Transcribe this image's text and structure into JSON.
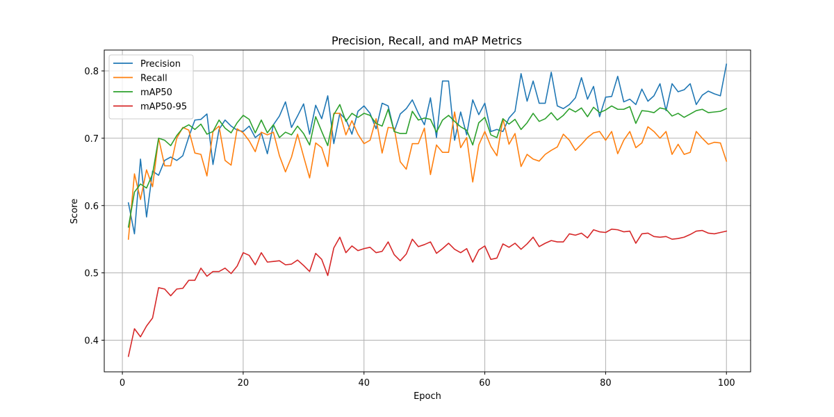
{
  "chart_data": {
    "type": "line",
    "title": "Precision, Recall, and mAP Metrics",
    "xlabel": "Epoch",
    "ylabel": "Score",
    "xlim": [
      -3,
      104
    ],
    "ylim": [
      0.353,
      0.831
    ],
    "xticks": [
      0,
      20,
      40,
      60,
      80,
      100
    ],
    "yticks": [
      0.4,
      0.5,
      0.6,
      0.7,
      0.8
    ],
    "ytick_labels": [
      "0.4",
      "0.5",
      "0.6",
      "0.7",
      "0.8"
    ],
    "grid": true,
    "legend_position": "upper left",
    "x": [
      1,
      2,
      3,
      4,
      5,
      6,
      7,
      8,
      9,
      10,
      11,
      12,
      13,
      14,
      15,
      16,
      17,
      18,
      19,
      20,
      21,
      22,
      23,
      24,
      25,
      26,
      27,
      28,
      29,
      30,
      31,
      32,
      33,
      34,
      35,
      36,
      37,
      38,
      39,
      40,
      41,
      42,
      43,
      44,
      45,
      46,
      47,
      48,
      49,
      50,
      51,
      52,
      53,
      54,
      55,
      56,
      57,
      58,
      59,
      60,
      61,
      62,
      63,
      64,
      65,
      66,
      67,
      68,
      69,
      70,
      71,
      72,
      73,
      74,
      75,
      76,
      77,
      78,
      79,
      80,
      81,
      82,
      83,
      84,
      85,
      86,
      87,
      88,
      89,
      90,
      91,
      92,
      93,
      94,
      95,
      96,
      97,
      98,
      99,
      100
    ],
    "series": [
      {
        "name": "Precision",
        "color": "#1f77b4",
        "values": [
          0.604,
          0.558,
          0.669,
          0.583,
          0.651,
          0.645,
          0.667,
          0.672,
          0.667,
          0.674,
          0.702,
          0.727,
          0.728,
          0.736,
          0.661,
          0.713,
          0.727,
          0.718,
          0.712,
          0.71,
          0.718,
          0.701,
          0.708,
          0.677,
          0.72,
          0.733,
          0.754,
          0.716,
          0.733,
          0.751,
          0.706,
          0.749,
          0.729,
          0.763,
          0.692,
          0.737,
          0.728,
          0.706,
          0.74,
          0.748,
          0.737,
          0.714,
          0.752,
          0.748,
          0.71,
          0.736,
          0.744,
          0.757,
          0.737,
          0.72,
          0.76,
          0.701,
          0.785,
          0.785,
          0.697,
          0.739,
          0.705,
          0.757,
          0.735,
          0.752,
          0.71,
          0.713,
          0.71,
          0.73,
          0.74,
          0.796,
          0.755,
          0.785,
          0.752,
          0.752,
          0.798,
          0.748,
          0.744,
          0.75,
          0.76,
          0.79,
          0.758,
          0.777,
          0.732,
          0.761,
          0.762,
          0.792,
          0.754,
          0.758,
          0.75,
          0.773,
          0.755,
          0.763,
          0.781,
          0.741,
          0.781,
          0.769,
          0.772,
          0.781,
          0.75,
          0.764,
          0.77,
          0.766,
          0.763,
          0.81
        ]
      },
      {
        "name": "Recall",
        "color": "#ff7f0e",
        "values": [
          0.55,
          0.647,
          0.609,
          0.653,
          0.628,
          0.7,
          0.659,
          0.659,
          0.7,
          0.716,
          0.712,
          0.678,
          0.676,
          0.644,
          0.71,
          0.718,
          0.667,
          0.66,
          0.714,
          0.708,
          0.696,
          0.68,
          0.709,
          0.705,
          0.709,
          0.674,
          0.65,
          0.672,
          0.706,
          0.673,
          0.641,
          0.693,
          0.686,
          0.658,
          0.737,
          0.737,
          0.705,
          0.726,
          0.706,
          0.692,
          0.697,
          0.729,
          0.678,
          0.716,
          0.715,
          0.665,
          0.654,
          0.692,
          0.692,
          0.715,
          0.646,
          0.69,
          0.679,
          0.679,
          0.739,
          0.686,
          0.701,
          0.635,
          0.69,
          0.71,
          0.688,
          0.674,
          0.729,
          0.691,
          0.707,
          0.658,
          0.676,
          0.669,
          0.666,
          0.676,
          0.682,
          0.687,
          0.706,
          0.697,
          0.682,
          0.691,
          0.701,
          0.708,
          0.71,
          0.697,
          0.71,
          0.677,
          0.697,
          0.71,
          0.686,
          0.693,
          0.717,
          0.71,
          0.7,
          0.71,
          0.676,
          0.691,
          0.676,
          0.679,
          0.71,
          0.7,
          0.691,
          0.694,
          0.693,
          0.666
        ]
      },
      {
        "name": "mAP50",
        "color": "#2ca02c",
        "values": [
          0.568,
          0.62,
          0.632,
          0.626,
          0.647,
          0.7,
          0.697,
          0.689,
          0.704,
          0.715,
          0.72,
          0.713,
          0.721,
          0.706,
          0.71,
          0.727,
          0.715,
          0.708,
          0.723,
          0.734,
          0.728,
          0.708,
          0.727,
          0.708,
          0.72,
          0.701,
          0.709,
          0.705,
          0.718,
          0.707,
          0.69,
          0.732,
          0.71,
          0.689,
          0.735,
          0.75,
          0.725,
          0.737,
          0.731,
          0.737,
          0.734,
          0.722,
          0.718,
          0.743,
          0.71,
          0.707,
          0.707,
          0.74,
          0.727,
          0.73,
          0.728,
          0.709,
          0.727,
          0.734,
          0.725,
          0.717,
          0.712,
          0.69,
          0.723,
          0.731,
          0.705,
          0.701,
          0.729,
          0.721,
          0.728,
          0.713,
          0.723,
          0.737,
          0.725,
          0.729,
          0.738,
          0.727,
          0.734,
          0.744,
          0.739,
          0.745,
          0.732,
          0.746,
          0.738,
          0.742,
          0.748,
          0.743,
          0.743,
          0.747,
          0.722,
          0.741,
          0.74,
          0.738,
          0.745,
          0.743,
          0.733,
          0.737,
          0.731,
          0.736,
          0.741,
          0.743,
          0.738,
          0.739,
          0.74,
          0.744
        ]
      },
      {
        "name": "mAP50-95",
        "color": "#d62728",
        "values": [
          0.376,
          0.417,
          0.405,
          0.421,
          0.433,
          0.478,
          0.476,
          0.466,
          0.476,
          0.477,
          0.489,
          0.489,
          0.507,
          0.495,
          0.502,
          0.502,
          0.507,
          0.499,
          0.51,
          0.53,
          0.526,
          0.512,
          0.53,
          0.516,
          0.517,
          0.518,
          0.512,
          0.513,
          0.519,
          0.511,
          0.502,
          0.529,
          0.52,
          0.496,
          0.537,
          0.553,
          0.53,
          0.54,
          0.533,
          0.536,
          0.538,
          0.53,
          0.532,
          0.546,
          0.527,
          0.518,
          0.528,
          0.55,
          0.539,
          0.542,
          0.546,
          0.529,
          0.536,
          0.544,
          0.535,
          0.53,
          0.536,
          0.516,
          0.534,
          0.54,
          0.52,
          0.522,
          0.543,
          0.538,
          0.544,
          0.535,
          0.543,
          0.553,
          0.539,
          0.544,
          0.548,
          0.546,
          0.546,
          0.558,
          0.556,
          0.559,
          0.552,
          0.564,
          0.561,
          0.56,
          0.565,
          0.564,
          0.561,
          0.562,
          0.544,
          0.558,
          0.559,
          0.554,
          0.553,
          0.554,
          0.55,
          0.551,
          0.553,
          0.557,
          0.562,
          0.563,
          0.559,
          0.558,
          0.56,
          0.562
        ]
      }
    ]
  }
}
